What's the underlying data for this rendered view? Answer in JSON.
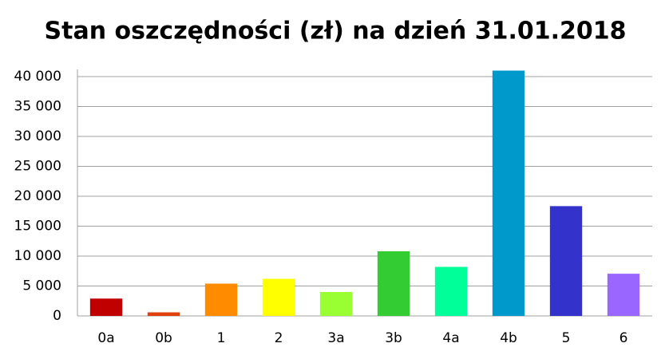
{
  "chart_data": {
    "type": "bar",
    "title": "Stan oszczędności (zł) na dzień 31.01.2018",
    "categories": [
      "0a",
      "0b",
      "1",
      "2",
      "3a",
      "3b",
      "4a",
      "4b",
      "5",
      "6"
    ],
    "values": [
      2900,
      600,
      5400,
      6200,
      4000,
      10800,
      8200,
      41000,
      18350,
      7050
    ],
    "colors": [
      "#c00000",
      "#e0400c",
      "#ff8c00",
      "#ffff00",
      "#99ff33",
      "#33cc33",
      "#00ff99",
      "#0099cc",
      "#3333cc",
      "#9966ff"
    ],
    "ylim": [
      0,
      41200
    ],
    "yticks": [
      0,
      {
        "value": 5000,
        "label": "5 000"
      },
      {
        "value": 10000,
        "label": "10 000"
      },
      {
        "value": 15000,
        "label": "15 000"
      },
      {
        "value": 20000,
        "label": "20 000"
      },
      {
        "value": 25000,
        "label": "25 000"
      },
      {
        "value": 30000,
        "label": "30 000"
      },
      {
        "value": 35000,
        "label": "35 000"
      },
      {
        "value": 40000,
        "label": "40 000"
      }
    ],
    "grid": true
  }
}
